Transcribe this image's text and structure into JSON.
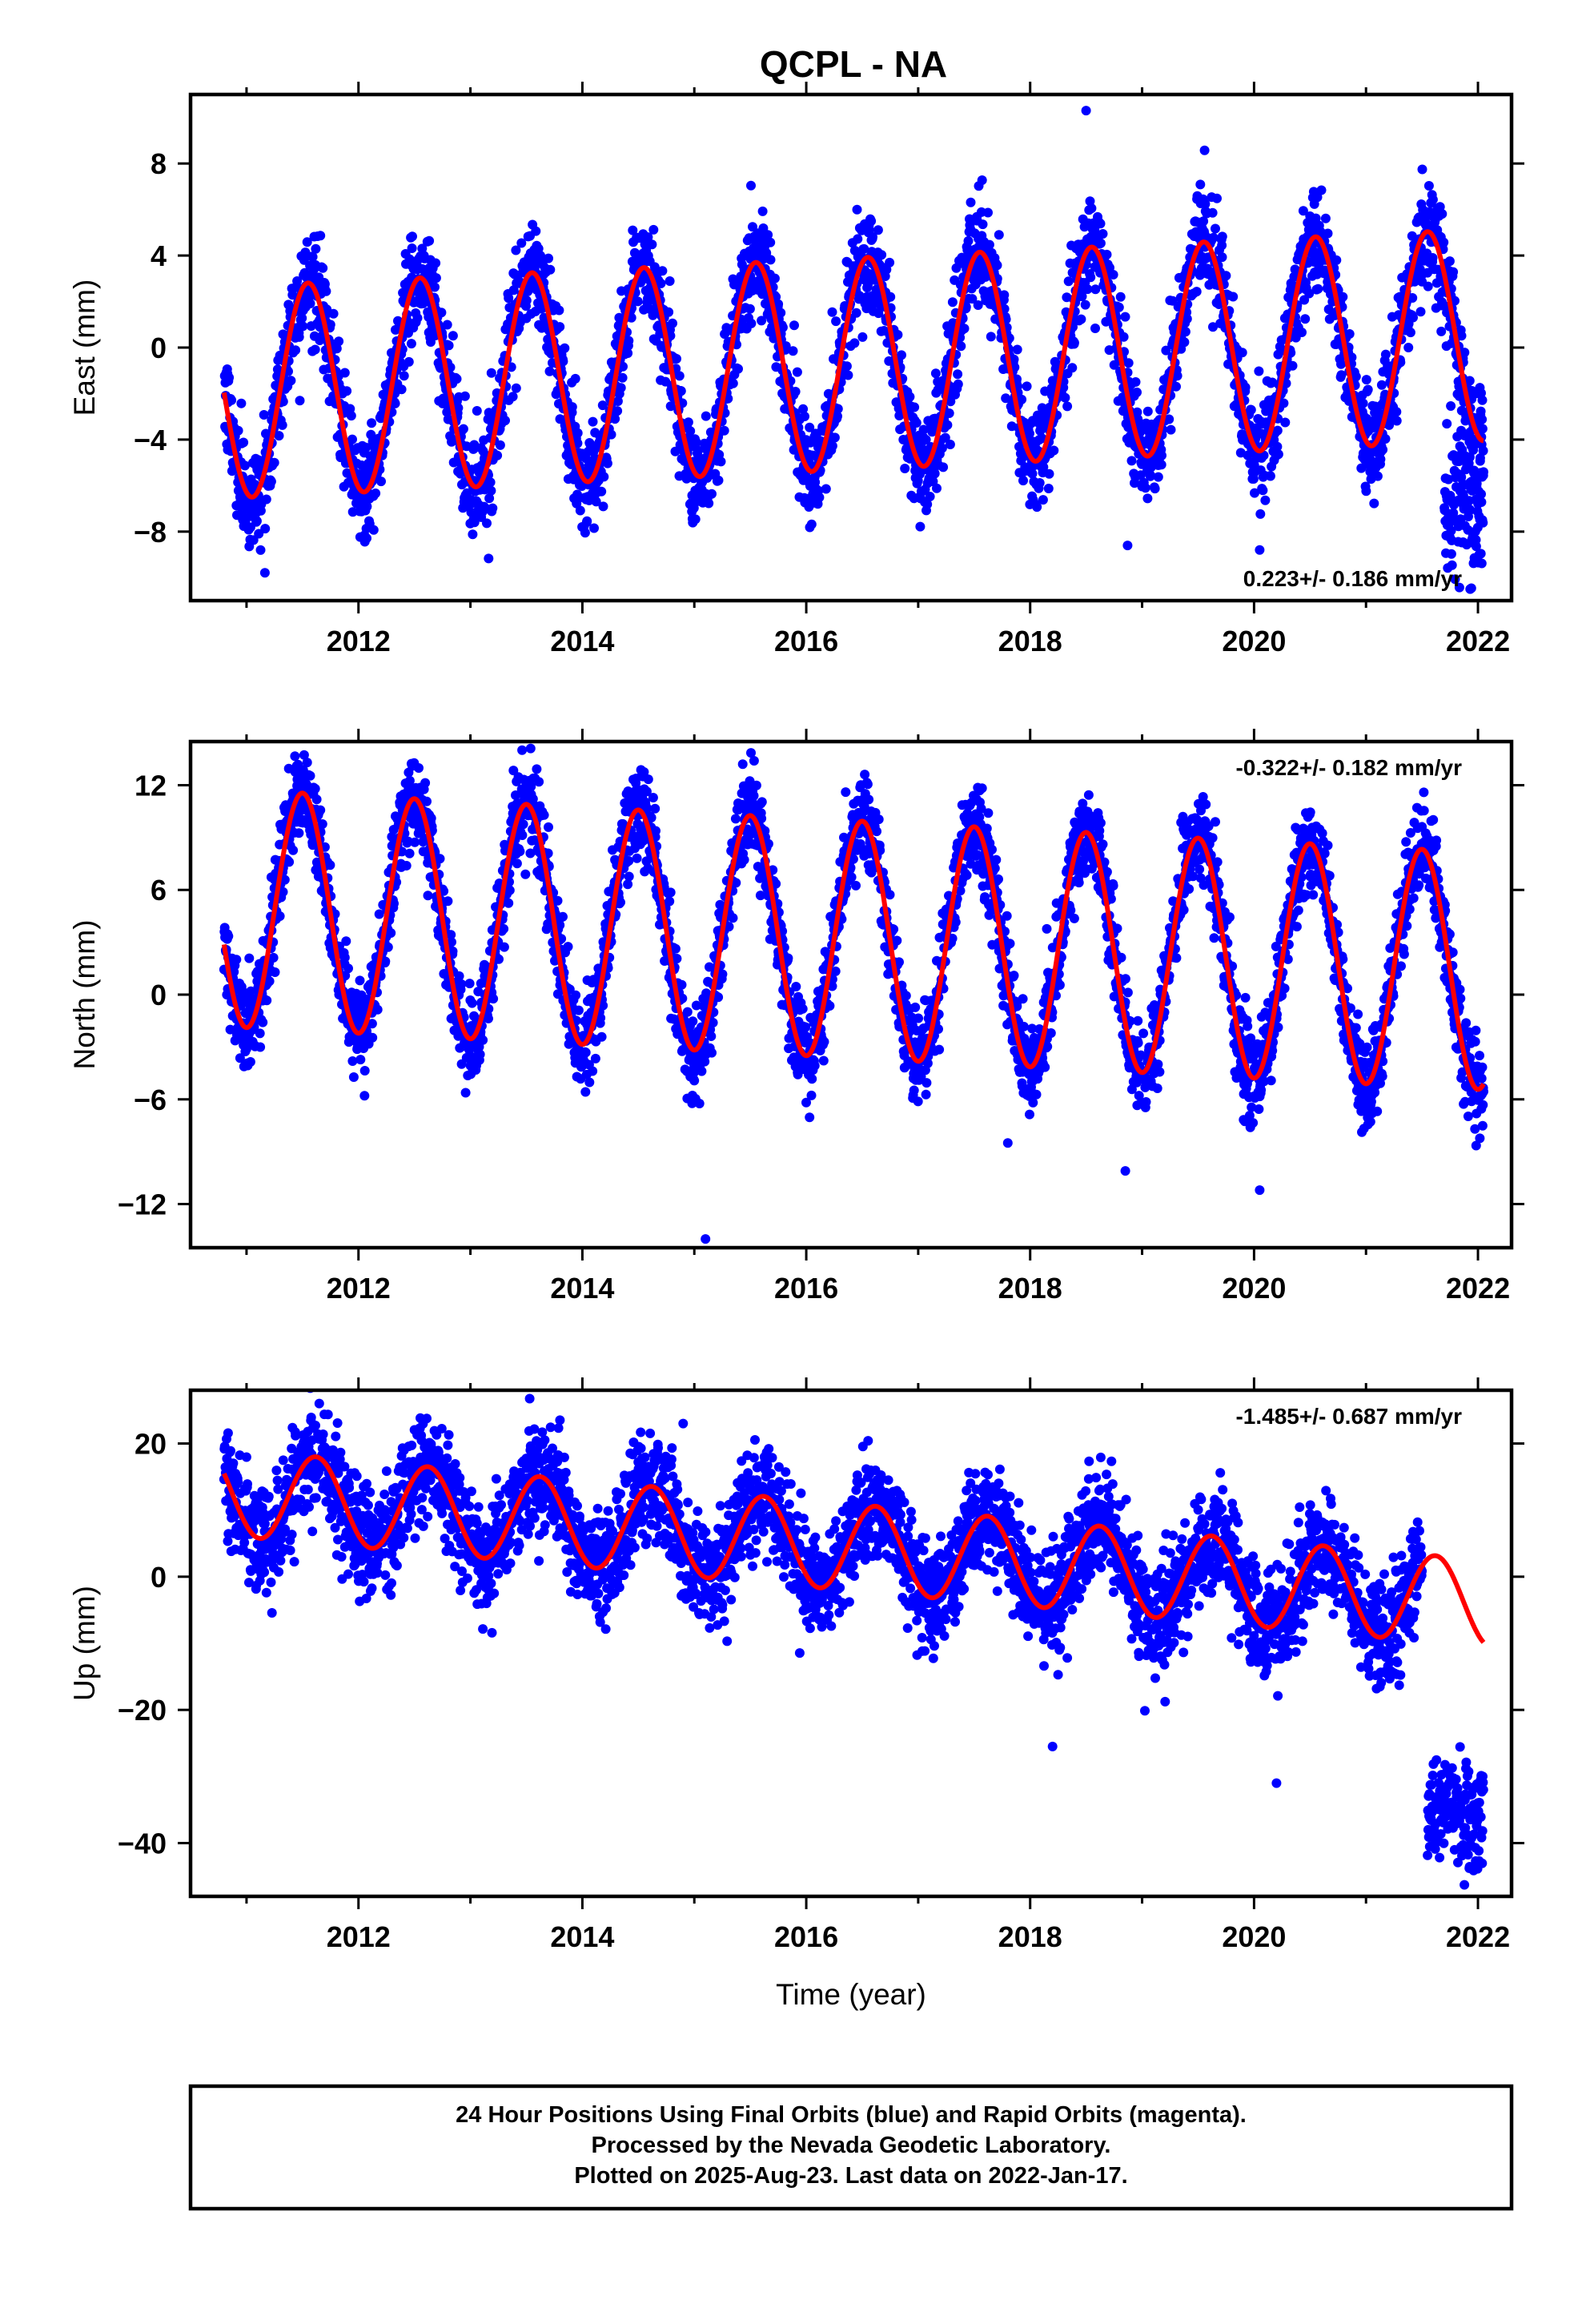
{
  "title": "QCPL - NA",
  "footer": {
    "line1": "24 Hour Positions Using Final Orbits (blue) and Rapid Orbits (magenta).",
    "line2": "Processed by the Nevada Geodetic Laboratory.",
    "line3": "Plotted on 2025-Aug-23. Last data on 2022-Jan-17."
  },
  "colors": {
    "final_orbits": "#0000ff",
    "model": "#ff0000",
    "frame": "#000000"
  },
  "chart_data": [
    {
      "type": "scatter",
      "component": "east",
      "ylabel": "East (mm)",
      "xlabel": "",
      "xlim": [
        2010.5,
        2022.3
      ],
      "ylim": [
        -11,
        11
      ],
      "xticks": [
        2012,
        2014,
        2016,
        2018,
        2020,
        2022
      ],
      "yticks": [
        -8,
        -4,
        0,
        4,
        8
      ],
      "ytick_labels": [
        "−8",
        "−4",
        "0",
        "4",
        "8"
      ],
      "rate_label": "0.223+/- 0.186 mm/yr",
      "rate_position": "bottom-right",
      "data_start": 2010.8,
      "data_end": 2022.05,
      "model_end": 2022.05,
      "model": {
        "offset": -0.8,
        "trend": 0.223,
        "amplitude": 4.6,
        "peak_phase": 0.55
      },
      "noise_sd": 1.1,
      "model_label_series": "24 Hour Positions Using Final Orbits (blue)",
      "outliers": [
        {
          "x": 2018.5,
          "y": 10.3
        },
        {
          "x": 2018.87,
          "y": -8.6
        },
        {
          "x": 2020.05,
          "y": -8.8
        },
        {
          "x": 2021.93,
          "y": -10.5
        }
      ],
      "late_data": {
        "start": 2021.7,
        "end": 2022.05,
        "center": -7.0,
        "spread": 1.5
      }
    },
    {
      "type": "scatter",
      "component": "north",
      "ylabel": "North (mm)",
      "xlabel": "",
      "xlim": [
        2010.5,
        2022.3
      ],
      "ylim": [
        -14.5,
        14.5
      ],
      "xticks": [
        2012,
        2014,
        2016,
        2018,
        2020,
        2022
      ],
      "yticks": [
        -12,
        -6,
        0,
        6,
        12
      ],
      "ytick_labels": [
        "−12",
        "−6",
        "0",
        "6",
        "12"
      ],
      "rate_label": "-0.322+/- 0.182 mm/yr",
      "rate_position": "top-right",
      "data_start": 2010.8,
      "data_end": 2022.05,
      "model_end": 2022.05,
      "model": {
        "offset": 3.3,
        "trend": -0.322,
        "amplitude": 6.8,
        "peak_phase": 0.5
      },
      "noise_sd": 1.3,
      "outliers": [
        {
          "x": 2015.1,
          "y": -14.0
        },
        {
          "x": 2020.05,
          "y": -11.2
        },
        {
          "x": 2018.85,
          "y": -10.1
        },
        {
          "x": 2017.8,
          "y": -8.5
        }
      ],
      "late_data": null
    },
    {
      "type": "scatter",
      "component": "up",
      "ylabel": "Up (mm)",
      "xlabel": "Time (year)",
      "xlim": [
        2010.5,
        2022.3
      ],
      "ylim": [
        -48,
        28
      ],
      "xticks": [
        2012,
        2014,
        2016,
        2018,
        2020,
        2022
      ],
      "yticks": [
        -40,
        -20,
        0,
        20
      ],
      "ytick_labels": [
        "−40",
        "−20",
        "0",
        "20"
      ],
      "rate_label": "-1.485+/- 0.687 mm/yr",
      "rate_position": "top-right",
      "data_start": 2010.8,
      "data_end": 2021.5,
      "model_end": 2022.05,
      "model": {
        "offset": 5.0,
        "trend": -1.485,
        "amplitude": 6.5,
        "peak_phase": 0.62
      },
      "noise_sd": 4.0,
      "outliers": [
        {
          "x": 2011.65,
          "y": 26.0
        },
        {
          "x": 2013.8,
          "y": 23.5
        },
        {
          "x": 2014.9,
          "y": 23.0
        },
        {
          "x": 2020.2,
          "y": -31.0
        },
        {
          "x": 2018.2,
          "y": -25.5
        }
      ],
      "late_data": {
        "start": 2021.55,
        "end": 2022.05,
        "center": -35.0,
        "spread": 4.0
      }
    }
  ]
}
